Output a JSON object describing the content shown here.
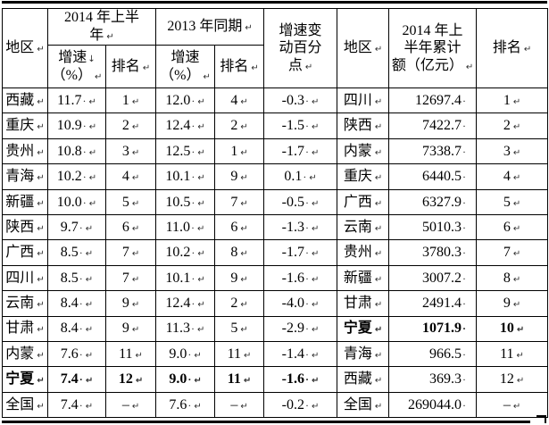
{
  "marks": {
    "cell_end": "↵",
    "space_dot": "·",
    "line_break": "↓"
  },
  "table": {
    "header": {
      "region_left": "地区",
      "group_2014": "2014 年上半\n年",
      "group_2013": "2013 年同期",
      "growth_2014_line1": "增速",
      "growth_2014_line2": "（%）",
      "rank_2014": "排名",
      "growth_2013_line1": "增速",
      "growth_2013_line2": "（%）",
      "rank_2013": "排名",
      "change": "增速变\n动百分\n点",
      "region_right": "地区",
      "amount": "2014 年上\n半年累计\n额（亿元）",
      "rank_right": "排名"
    },
    "rows": [
      {
        "region": "西藏",
        "growth14": "11.7",
        "rank14": "1",
        "growth13": "12.0",
        "rank13": "4",
        "change": "-0.3",
        "region2": "四川",
        "amount": "12697.4",
        "rank2": "1",
        "bold": ""
      },
      {
        "region": "重庆",
        "growth14": "10.9",
        "rank14": "2",
        "growth13": "12.4",
        "rank13": "2",
        "change": "-1.5",
        "region2": "陕西",
        "amount": "7422.7",
        "rank2": "2",
        "bold": ""
      },
      {
        "region": "贵州",
        "growth14": "10.8",
        "rank14": "3",
        "growth13": "12.5",
        "rank13": "1",
        "change": "-1.7",
        "region2": "内蒙",
        "amount": "7338.7",
        "rank2": "3",
        "bold": ""
      },
      {
        "region": "青海",
        "growth14": "10.2",
        "rank14": "4",
        "growth13": "10.1",
        "rank13": "9",
        "change": "0.1",
        "region2": "重庆",
        "amount": "6440.5",
        "rank2": "4",
        "bold": ""
      },
      {
        "region": "新疆",
        "growth14": "10.0",
        "rank14": "5",
        "growth13": "10.5",
        "rank13": "7",
        "change": "-0.5",
        "region2": "广西",
        "amount": "6327.9",
        "rank2": "5",
        "bold": ""
      },
      {
        "region": "陕西",
        "growth14": "9.7",
        "rank14": "6",
        "growth13": "11.0",
        "rank13": "6",
        "change": "-1.3",
        "region2": "云南",
        "amount": "5010.3",
        "rank2": "6",
        "bold": ""
      },
      {
        "region": "广西",
        "growth14": "8.5",
        "rank14": "7",
        "growth13": "10.2",
        "rank13": "8",
        "change": "-1.7",
        "region2": "贵州",
        "amount": "3780.3",
        "rank2": "7",
        "bold": ""
      },
      {
        "region": "四川",
        "growth14": "8.5",
        "rank14": "7",
        "growth13": "10.1",
        "rank13": "9",
        "change": "-1.6",
        "region2": "新疆",
        "amount": "3007.2",
        "rank2": "8",
        "bold": ""
      },
      {
        "region": "云南",
        "growth14": "8.4",
        "rank14": "9",
        "growth13": "12.4",
        "rank13": "2",
        "change": "-4.0",
        "region2": "甘肃",
        "amount": "2491.4",
        "rank2": "9",
        "bold": ""
      },
      {
        "region": "甘肃",
        "growth14": "8.4",
        "rank14": "9",
        "growth13": "11.3",
        "rank13": "5",
        "change": "-2.9",
        "region2": "宁夏",
        "amount": "1071.9",
        "rank2": "10",
        "bold": "right"
      },
      {
        "region": "内蒙",
        "growth14": "7.6",
        "rank14": "11",
        "growth13": "9.0",
        "rank13": "11",
        "change": "-1.4",
        "region2": "青海",
        "amount": "966.5",
        "rank2": "11",
        "bold": ""
      },
      {
        "region": "宁夏",
        "growth14": "7.4",
        "rank14": "12",
        "growth13": "9.0",
        "rank13": "11",
        "change": "-1.6",
        "region2": "西藏",
        "amount": "369.3",
        "rank2": "12",
        "bold": "left"
      },
      {
        "region": "全国",
        "growth14": "7.4",
        "rank14": "–",
        "growth13": "7.6",
        "rank13": "–",
        "change": "-0.2",
        "region2": "全国",
        "amount": "269044.0",
        "rank2": "–",
        "bold": ""
      }
    ]
  }
}
